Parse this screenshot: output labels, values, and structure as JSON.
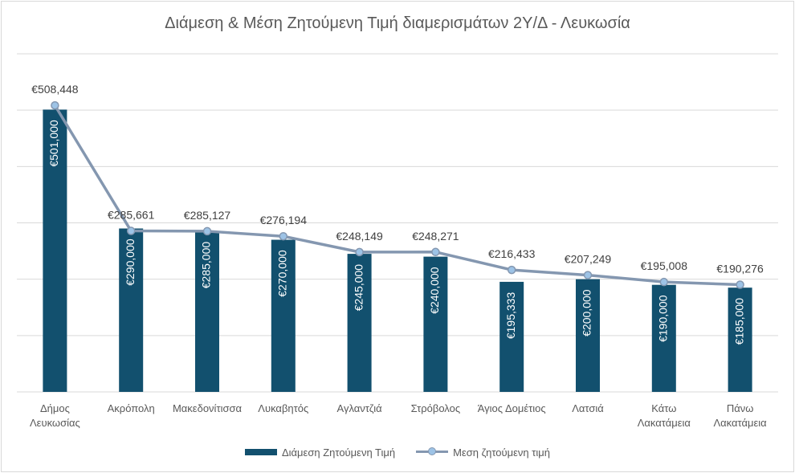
{
  "chart_data": {
    "type": "bar",
    "title": "Διάμεση & Μέση Ζητούμενη Τιμή διαμερισμάτων 2Υ/Δ - Λευκωσία",
    "categories": [
      [
        "Δήμος",
        "Λευκωσίας"
      ],
      [
        "Ακρόπολη"
      ],
      [
        "Μακεδονίτισσα"
      ],
      [
        "Λυκαβητός"
      ],
      [
        "Αγλαντζιά"
      ],
      [
        "Στρόβολος"
      ],
      [
        "Άγιος Δομέτιος"
      ],
      [
        "Λατσιά"
      ],
      [
        "Κάτω",
        "Λακατάμεια"
      ],
      [
        "Πάνω",
        "Λακατάμεια"
      ]
    ],
    "series": [
      {
        "name": "Διάμεση Ζητούμενη Τιμή",
        "type": "bar",
        "color": "#12506e",
        "values": [
          501000,
          290000,
          285000,
          270000,
          245000,
          240000,
          195333,
          200000,
          190000,
          185000
        ],
        "labels": [
          "€501,000",
          "€290,000",
          "€285,000",
          "€270,000",
          "€245,000",
          "€240,000",
          "€195,333",
          "€200,000",
          "€190,000",
          "€185,000"
        ]
      },
      {
        "name": "Μεση ζητούμενη τιμή",
        "type": "line",
        "color": "#8497b0",
        "marker_color": "#9dc3e6",
        "values": [
          508448,
          285661,
          285127,
          276194,
          248149,
          248271,
          216433,
          207249,
          195008,
          190276
        ],
        "labels": [
          "€508,448",
          "€285,661",
          "€285,127",
          "€276,194",
          "€248,149",
          "€248,271",
          "€216,433",
          "€207,249",
          "€195,008",
          "€190,276"
        ]
      }
    ],
    "ylim": [
      0,
      600000
    ],
    "grid": true,
    "y_tick_labels_shown": false,
    "legend_position": "bottom"
  }
}
